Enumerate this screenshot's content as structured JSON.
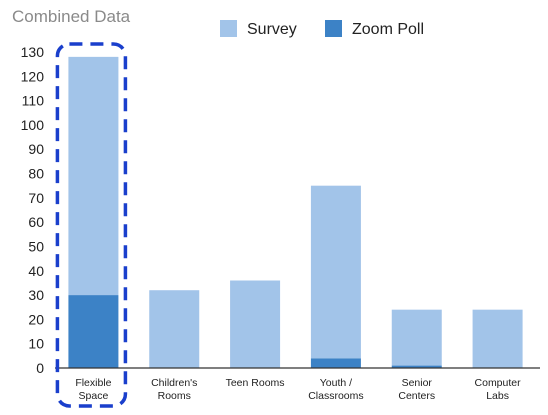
{
  "colors": {
    "survey": "#a2c4e9",
    "zoom_poll": "#3c82c6",
    "highlight": "#1a3fcc",
    "axis": "#333333",
    "title": "#8a8a8a",
    "text": "#222222"
  },
  "chart_data": {
    "type": "bar",
    "stacked": true,
    "title": "Combined Data",
    "xlabel": "",
    "ylabel": "",
    "ylim": [
      0,
      130
    ],
    "yticks": [
      0,
      10,
      20,
      30,
      40,
      50,
      60,
      70,
      80,
      90,
      100,
      110,
      120,
      130
    ],
    "grid": false,
    "legend_position": "top",
    "categories": [
      [
        "Flexible",
        "Space"
      ],
      [
        "Children's",
        "Rooms"
      ],
      [
        "Teen Rooms"
      ],
      [
        "Youth /",
        "Classrooms"
      ],
      [
        "Senior",
        "Centers"
      ],
      [
        "Computer",
        "Labs"
      ]
    ],
    "series": [
      {
        "name": "Zoom Poll",
        "values": [
          30,
          0,
          0,
          4,
          1,
          0
        ]
      },
      {
        "name": "Survey",
        "values": [
          98,
          32,
          36,
          71,
          23,
          24
        ]
      }
    ],
    "highlighted_category": 0
  }
}
